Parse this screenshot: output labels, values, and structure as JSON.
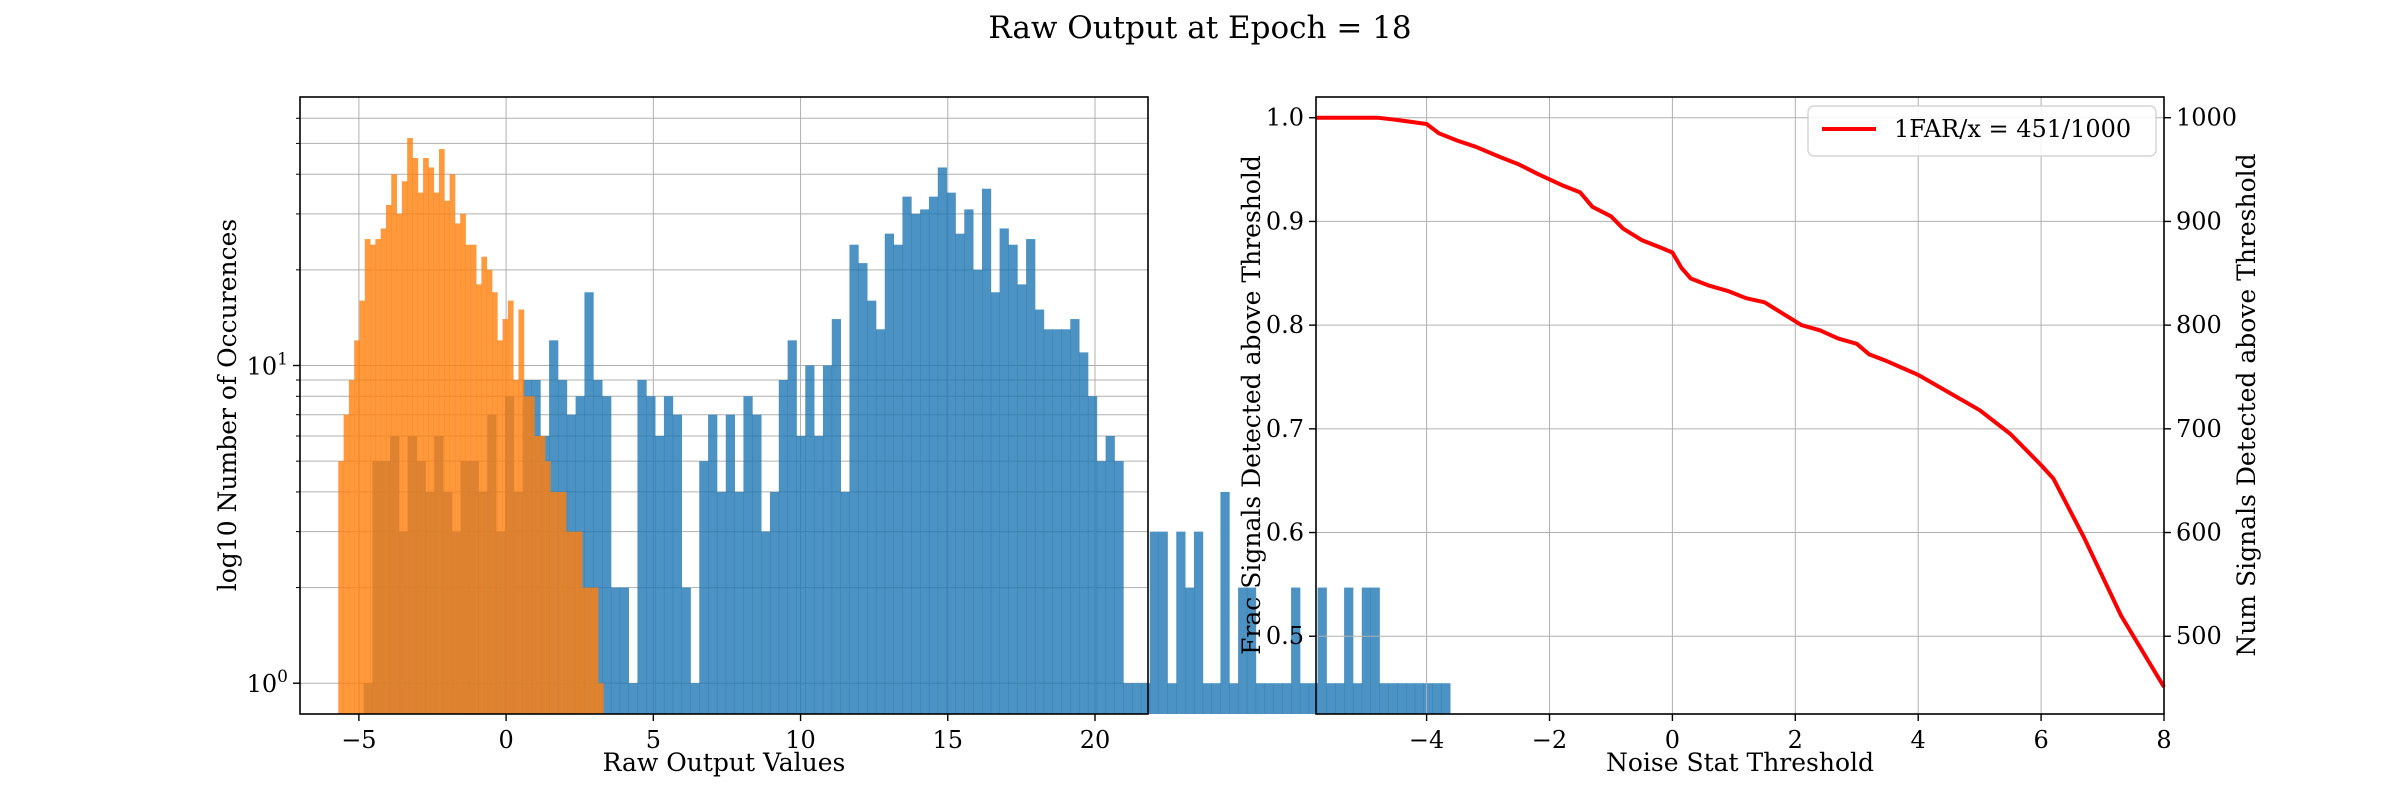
{
  "figure": {
    "title": "Raw Output at Epoch = 18"
  },
  "colors": {
    "blue": "#1f77b4",
    "orange": "#ff7f0e",
    "line": "#ff0000",
    "grid": "#b0b0b0"
  },
  "chart_data": [
    {
      "type": "histogram",
      "xlabel": "Raw Output Values",
      "ylabel": "log10 Number of Occurences",
      "yscale": "log",
      "xlim": [
        -7.0,
        21.8
      ],
      "ylim": [
        0.8,
        70
      ],
      "xticks": [
        -5,
        0,
        5,
        10,
        15,
        20
      ],
      "xtick_labels": [
        "−5",
        "0",
        "5",
        "10",
        "15",
        "20"
      ],
      "ytick_labels": [
        {
          "base": "10",
          "exp": "0",
          "value": 1
        },
        {
          "base": "10",
          "exp": "1",
          "value": 10
        }
      ],
      "grid": true,
      "series": [
        {
          "color": "blue",
          "bin_start": -4.84,
          "bin_width": 0.3,
          "values": [
            1,
            5,
            5,
            6,
            3,
            6,
            5,
            4,
            6,
            4,
            3,
            5,
            5,
            4,
            7,
            3,
            8,
            4,
            9,
            9,
            6,
            12,
            9,
            7,
            8,
            17,
            9,
            8,
            2,
            2,
            1,
            9,
            8,
            6,
            8,
            7,
            2,
            1,
            5,
            7,
            4,
            7,
            4,
            8,
            7,
            3,
            4,
            9,
            12,
            6,
            10,
            6,
            10,
            14,
            4,
            24,
            21,
            16,
            13,
            26,
            24,
            34,
            30,
            31,
            34,
            42,
            35,
            26,
            31,
            20,
            36,
            17,
            27,
            24,
            18,
            25,
            15,
            13,
            13,
            13,
            14,
            11,
            8,
            5,
            6,
            5,
            1,
            1,
            1,
            3,
            3,
            1,
            3,
            2,
            3,
            1,
            1,
            4,
            1,
            2,
            2,
            1,
            1,
            1,
            1,
            2,
            1,
            1,
            2,
            1,
            1,
            2,
            1,
            2,
            2,
            1,
            1,
            1,
            1,
            1,
            1,
            1,
            1
          ]
        },
        {
          "color": "orange",
          "bin_start": -5.7,
          "bin_width": 0.18,
          "values": [
            5,
            7,
            9,
            12,
            16,
            25,
            24,
            25,
            27,
            32,
            40,
            30,
            38,
            52,
            45,
            35,
            45,
            42,
            35,
            48,
            33,
            40,
            28,
            30,
            24,
            24,
            18,
            22,
            20,
            17,
            12,
            14,
            16,
            9,
            15,
            8,
            8,
            6,
            6,
            5,
            4,
            4,
            4,
            3,
            3,
            3,
            2,
            2,
            2,
            1
          ]
        }
      ]
    },
    {
      "type": "line",
      "xlabel": "Noise Stat Threshold",
      "ylabel": "Frac Signals Detected above Threshold",
      "ylabel_right": "Num Signals Detected above Threshold",
      "xlim": [
        -5.8,
        8.0
      ],
      "ylim": [
        0.425,
        1.02
      ],
      "xticks": [
        -4,
        -2,
        0,
        2,
        4,
        6,
        8
      ],
      "xtick_labels": [
        "−4",
        "−2",
        "0",
        "2",
        "4",
        "6",
        "8"
      ],
      "yticks": [
        0.5,
        0.6,
        0.7,
        0.8,
        0.9,
        1.0
      ],
      "ytick_labels": [
        "0.5",
        "0.6",
        "0.7",
        "0.8",
        "0.9",
        "1.0"
      ],
      "yticks_right": [
        500,
        600,
        700,
        800,
        900,
        1000
      ],
      "ytick_labels_right": [
        "500",
        "600",
        "700",
        "800",
        "900",
        "1000"
      ],
      "grid": true,
      "legend": "top-right",
      "series": [
        {
          "name": "1FAR/x = 451/1000",
          "color": "line",
          "points": [
            [
              -5.8,
              1.0
            ],
            [
              -4.8,
              1.0
            ],
            [
              -4.5,
              0.998
            ],
            [
              -4.0,
              0.994
            ],
            [
              -3.8,
              0.985
            ],
            [
              -3.5,
              0.978
            ],
            [
              -3.2,
              0.972
            ],
            [
              -2.8,
              0.962
            ],
            [
              -2.5,
              0.955
            ],
            [
              -2.2,
              0.946
            ],
            [
              -1.8,
              0.935
            ],
            [
              -1.5,
              0.928
            ],
            [
              -1.3,
              0.914
            ],
            [
              -1.0,
              0.905
            ],
            [
              -0.8,
              0.893
            ],
            [
              -0.5,
              0.882
            ],
            [
              -0.2,
              0.875
            ],
            [
              0.0,
              0.87
            ],
            [
              0.15,
              0.855
            ],
            [
              0.3,
              0.845
            ],
            [
              0.6,
              0.838
            ],
            [
              0.9,
              0.833
            ],
            [
              1.2,
              0.826
            ],
            [
              1.5,
              0.822
            ],
            [
              1.8,
              0.811
            ],
            [
              2.1,
              0.8
            ],
            [
              2.4,
              0.795
            ],
            [
              2.7,
              0.787
            ],
            [
              3.0,
              0.782
            ],
            [
              3.2,
              0.772
            ],
            [
              3.5,
              0.765
            ],
            [
              4.0,
              0.752
            ],
            [
              4.5,
              0.735
            ],
            [
              5.0,
              0.718
            ],
            [
              5.5,
              0.695
            ],
            [
              6.0,
              0.665
            ],
            [
              6.2,
              0.652
            ],
            [
              6.7,
              0.595
            ],
            [
              7.3,
              0.52
            ],
            [
              8.0,
              0.451
            ]
          ]
        }
      ]
    }
  ]
}
